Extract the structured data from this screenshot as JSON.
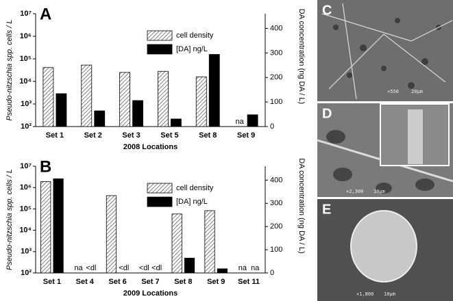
{
  "chart_data": [
    {
      "type": "bar",
      "panel_label": "A",
      "x_label": "2008 Locations",
      "y_label": "Pseudo-nitzschia spp. cells / L",
      "y2_label": "DA concentration (ng DA / L)",
      "categories": [
        "Set 1",
        "Set 2",
        "Set 3",
        "Set 5",
        "Set 8",
        "Set 9"
      ],
      "series": [
        {
          "name": "cell density",
          "color": "#ffffff",
          "hatch": true,
          "values": [
            41000,
            53000,
            25000,
            28000,
            16000,
            null
          ],
          "value_labels": [
            null,
            null,
            null,
            null,
            null,
            "na"
          ]
        },
        {
          "name": "[DA] ng/L",
          "color": "#000000",
          "axis": "y2",
          "values": [
            134,
            64,
            106,
            31,
            294,
            48
          ]
        }
      ],
      "log_y": true,
      "ylim": [
        100,
        10000000
      ],
      "yticks": [
        {
          "value": 100,
          "label": "10²"
        },
        {
          "value": 1000,
          "label": "10³"
        },
        {
          "value": 10000,
          "label": "10⁴"
        },
        {
          "value": 100000,
          "label": "10⁵"
        },
        {
          "value": 1000000,
          "label": "10⁶"
        },
        {
          "value": 10000000,
          "label": "10⁷"
        }
      ],
      "y2lim": [
        0,
        460
      ],
      "y2ticks": [
        0,
        100,
        200,
        300,
        400
      ],
      "legend": "upper right"
    },
    {
      "type": "bar",
      "panel_label": "B",
      "x_label": "2009 Locations",
      "y_label": "Pseudo-nitzschia spp. cells / L",
      "y2_label": "DA concentration (ng DA / L)",
      "categories": [
        "Set 1",
        "Set 4",
        "Set 6",
        "Set 7",
        "Set 8",
        "Set 9",
        "Set 11"
      ],
      "series": [
        {
          "name": "cell density",
          "color": "#ffffff",
          "hatch": true,
          "values": [
            1900000,
            null,
            420000,
            null,
            58000,
            83000,
            null
          ],
          "value_labels": [
            null,
            "na",
            null,
            "<dl",
            null,
            null,
            "na"
          ]
        },
        {
          "name": "[DA] ng/L",
          "color": "#000000",
          "axis": "y2",
          "values": [
            406,
            null,
            null,
            null,
            64,
            18,
            null
          ],
          "value_labels": [
            null,
            "<dl",
            "<dl",
            "<dl",
            null,
            null,
            "na"
          ]
        }
      ],
      "log_y": true,
      "ylim": [
        100,
        10000000
      ],
      "yticks": [
        {
          "value": 100,
          "label": "10²"
        },
        {
          "value": 1000,
          "label": "10³"
        },
        {
          "value": 10000,
          "label": "10⁴"
        },
        {
          "value": 100000,
          "label": "10⁵"
        },
        {
          "value": 1000000,
          "label": "10⁶"
        },
        {
          "value": 10000000,
          "label": "10⁷"
        }
      ],
      "y2lim": [
        0,
        460
      ],
      "y2ticks": [
        0,
        100,
        200,
        300,
        400
      ],
      "legend": "upper right"
    }
  ],
  "images": [
    {
      "label": "C",
      "magnification": "×550",
      "scale": "20μm"
    },
    {
      "label": "D",
      "magnification": "×2,300",
      "scale": "10μm"
    },
    {
      "label": "E",
      "magnification": "×1,800",
      "scale": "10μm"
    }
  ]
}
